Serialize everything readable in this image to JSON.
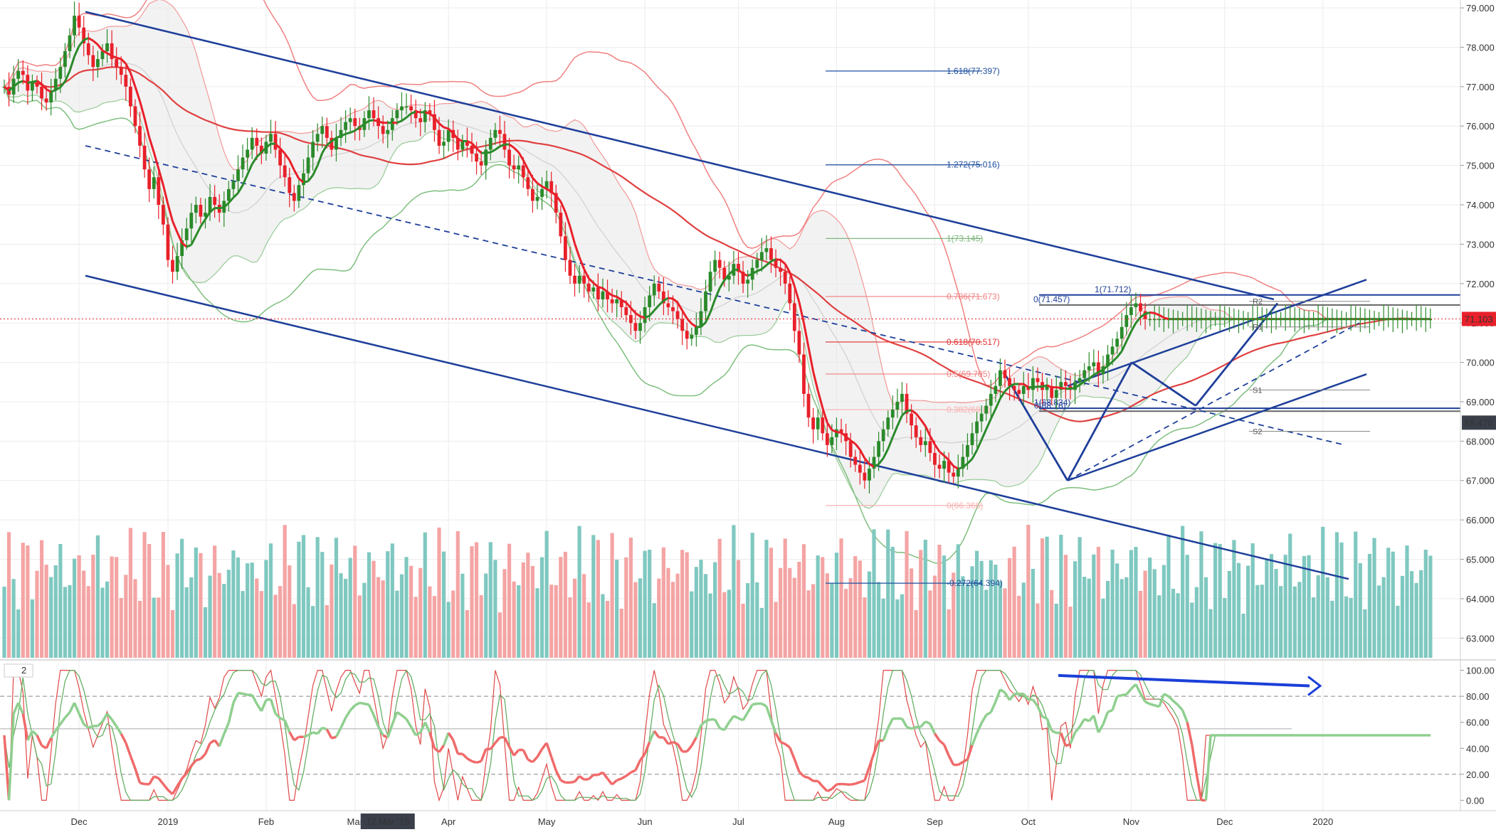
{
  "chart_data": {
    "type": "candlestick",
    "symbol_hint": "USDINR-like daily",
    "price_axis": {
      "min": 62.5,
      "max": 79.2,
      "ticks": [
        "79.000",
        "78.000",
        "77.000",
        "76.000",
        "75.000",
        "74.000",
        "73.000",
        "72.000",
        "71.000",
        "70.000",
        "69.000",
        "68.000",
        "67.000",
        "66.000",
        "65.000",
        "64.000",
        "63.000"
      ],
      "tick_values": [
        79,
        78,
        77,
        76,
        75,
        74,
        73,
        72,
        71,
        70,
        69,
        68,
        67,
        66,
        65,
        64,
        63
      ]
    },
    "osc_axis": {
      "min": -8,
      "max": 108,
      "ticks": [
        "100.00",
        "80.00",
        "60.00",
        "40.00",
        "20.00",
        "0.00"
      ],
      "tick_values": [
        100,
        80,
        60,
        40,
        20,
        0
      ]
    },
    "time_axis": {
      "labels": [
        "Dec",
        "2019",
        "Feb",
        "Mar",
        "Apr",
        "May",
        "Jun",
        "Jul",
        "Aug",
        "Sep",
        "Oct",
        "Nov",
        "Dec",
        "2020"
      ],
      "bar_index": [
        16,
        35,
        56,
        75,
        95,
        116,
        137,
        157,
        178,
        199,
        219,
        241,
        261,
        282
      ],
      "highlight_label": "12 Mar '19",
      "highlight_index": 82,
      "total_bars": 306
    },
    "current_price": {
      "label": "71.103",
      "value": 71.103
    },
    "crosshair_price": {
      "label": "68.470",
      "value": 68.47
    },
    "indicator_label": "2",
    "candles_series": [
      77.0,
      76.8,
      77.2,
      77.4,
      77.3,
      76.9,
      77.1,
      77.0,
      76.7,
      76.6,
      76.9,
      77.2,
      77.5,
      77.9,
      78.3,
      78.8,
      78.5,
      78.1,
      77.8,
      77.5,
      77.7,
      77.9,
      78.1,
      77.7,
      77.5,
      77.3,
      77.0,
      76.5,
      76.0,
      75.5,
      74.9,
      74.4,
      74.7,
      74.0,
      73.5,
      72.6,
      72.3,
      72.7,
      73.1,
      73.4,
      73.8,
      74.0,
      73.7,
      73.8,
      74.2,
      74.0,
      73.8,
      74.1,
      74.4,
      74.6,
      74.9,
      75.2,
      75.4,
      75.7,
      75.5,
      75.3,
      75.6,
      75.8,
      75.4,
      75.0,
      74.7,
      74.3,
      74.1,
      74.5,
      74.8,
      75.2,
      75.6,
      75.8,
      76.0,
      75.7,
      75.4,
      75.7,
      75.9,
      76.1,
      76.2,
      76.0,
      75.9,
      76.2,
      76.4,
      76.2,
      76.0,
      75.8,
      75.9,
      76.2,
      76.4,
      76.5,
      76.5,
      76.4,
      76.2,
      76.1,
      76.4,
      76.3,
      75.9,
      75.5,
      75.6,
      75.9,
      75.7,
      75.4,
      75.6,
      75.5,
      75.3,
      75.1,
      75.0,
      75.4,
      75.7,
      75.9,
      75.8,
      75.4,
      75.0,
      74.9,
      75.0,
      74.7,
      74.4,
      74.1,
      74.2,
      74.4,
      74.6,
      74.3,
      73.8,
      73.2,
      72.6,
      72.2,
      72.0,
      72.2,
      72.0,
      71.8,
      71.9,
      71.6,
      71.8,
      71.6,
      71.5,
      71.6,
      71.4,
      71.2,
      71.0,
      70.8,
      71.0,
      71.4,
      71.7,
      72.0,
      71.8,
      71.5,
      71.4,
      71.3,
      71.1,
      70.8,
      70.6,
      70.7,
      70.9,
      71.3,
      71.8,
      72.3,
      72.6,
      72.4,
      72.1,
      72.2,
      72.5,
      72.3,
      72.0,
      72.1,
      72.4,
      72.6,
      72.8,
      72.9,
      72.6,
      72.4,
      72.3,
      72.0,
      71.5,
      70.8,
      70.2,
      69.2,
      68.6,
      68.3,
      68.6,
      68.2,
      67.9,
      68.1,
      68.3,
      68.2,
      68.0,
      67.6,
      67.4,
      67.2,
      67.0,
      67.3,
      67.6,
      68.0,
      68.3,
      68.6,
      68.8,
      69.0,
      69.2,
      68.7,
      68.4,
      68.1,
      67.9,
      68.0,
      67.7,
      67.4,
      67.3,
      67.5,
      67.2,
      67.1,
      67.3,
      67.6,
      67.9,
      68.2,
      68.5,
      68.7,
      68.9,
      69.2,
      69.4,
      69.8,
      69.6,
      69.4,
      69.3,
      69.2,
      69.4,
      69.3,
      69.6,
      69.5,
      69.3,
      69.4,
      69.1,
      69.3,
      69.5,
      69.4,
      69.3,
      69.5,
      69.6,
      69.8,
      69.9,
      70.0,
      69.7,
      69.9,
      70.2,
      70.4,
      70.6,
      70.9,
      71.2,
      71.4,
      71.5,
      71.3,
      71.1
    ],
    "fib_levels": [
      {
        "label": "1.618(77.397)",
        "value": 77.397,
        "color": "#1e4fa0"
      },
      {
        "label": "1.272(75.016)",
        "value": 75.016,
        "color": "#1e4fa0"
      },
      {
        "label": "1(73.145)",
        "value": 73.145,
        "color": "#7fb77e"
      },
      {
        "label": "0.786(71.673)",
        "value": 71.673,
        "color": "#f08080"
      },
      {
        "label": "0.618(70.517)",
        "value": 70.517,
        "color": "#e03030"
      },
      {
        "label": "0.5(69.705)",
        "value": 69.705,
        "color": "#f08080"
      },
      {
        "label": "0.382(68.8)",
        "value": 68.8,
        "color": "#f8b0b0"
      },
      {
        "label": "0(66.366)",
        "value": 66.366,
        "color": "#f8b0b0"
      },
      {
        "label": "-0.272(64.394)",
        "value": 64.394,
        "color": "#1e4fa0"
      }
    ],
    "fib2_levels": [
      {
        "label": "1(71.712)",
        "value": 71.712
      },
      {
        "label": "0(71.457)",
        "value": 71.457
      },
      {
        "label": "1(68.834)",
        "value": 68.834
      },
      {
        "label": "0(68.76)",
        "value": 68.76
      }
    ],
    "pivots": [
      {
        "label": "R2",
        "value": 71.55
      },
      {
        "label": "R1",
        "value": 70.9
      },
      {
        "label": "S1",
        "value": 69.3
      },
      {
        "label": "S2",
        "value": 68.25
      }
    ],
    "colors": {
      "bull": "#2a8a2a",
      "bear": "#e8202a",
      "channel": "#1e3f9a",
      "upper_band": "#f08080",
      "lower_band": "#7fbf7f",
      "ema_long": "#e04040",
      "vol_up": "#7fc8c0",
      "vol_down": "#f4a4a4",
      "stoch_fast": "#e04848",
      "stoch_slow": "#5aaa5a",
      "rsi": "#8fcf8f"
    }
  }
}
